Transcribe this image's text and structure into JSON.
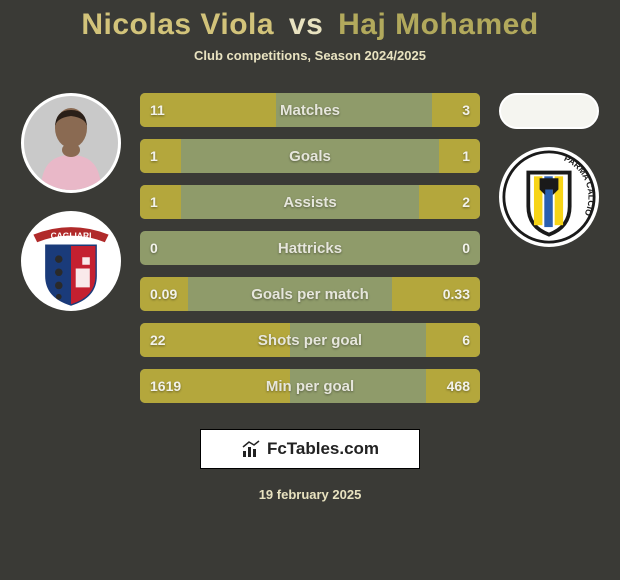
{
  "title": {
    "player1": "Nicolas Viola",
    "vs": "vs",
    "player2": "Haj Mohamed",
    "player1_color": "#d2c37a",
    "vs_color": "#e8e2c0",
    "player2_color": "#b2a95c"
  },
  "subtitle": "Club competitions, Season 2024/2025",
  "subtitle_color": "#e8e2c0",
  "background_color": "#3a3a36",
  "stats": {
    "bar_bg": "#8f9b6a",
    "left_fill": "#b4a73c",
    "right_fill": "#b4a73c",
    "text_color": "#f2f2ea",
    "label_color": "#e6e6dc",
    "rows": [
      {
        "label": "Matches",
        "left": "11",
        "right": "3",
        "left_pct": 40,
        "right_pct": 14
      },
      {
        "label": "Goals",
        "left": "1",
        "right": "1",
        "left_pct": 12,
        "right_pct": 12
      },
      {
        "label": "Assists",
        "left": "1",
        "right": "2",
        "left_pct": 12,
        "right_pct": 18
      },
      {
        "label": "Hattricks",
        "left": "0",
        "right": "0",
        "left_pct": 0,
        "right_pct": 0
      },
      {
        "label": "Goals per match",
        "left": "0.09",
        "right": "0.33",
        "left_pct": 14,
        "right_pct": 26
      },
      {
        "label": "Shots per goal",
        "left": "22",
        "right": "6",
        "left_pct": 44,
        "right_pct": 16
      },
      {
        "label": "Min per goal",
        "left": "1619",
        "right": "468",
        "left_pct": 44,
        "right_pct": 16
      }
    ]
  },
  "left_side": {
    "avatar_bg": "#d8c8c0",
    "club_name": "cagliari-badge",
    "club_bg": "#ffffff",
    "club_banner": "#b02a2a",
    "club_banner_text": "CAGLIARI",
    "shield_colors": [
      "#1a3b7a",
      "#c42030"
    ]
  },
  "right_side": {
    "oval_bg": "#f5f5f0",
    "club_name": "parma-badge",
    "club_bg": "#ffffff",
    "club_ring_text": "PARMA CALCIO",
    "stripe_colors": [
      "#1a1a1a",
      "#f7d417",
      "#2a5fb0"
    ]
  },
  "branding": {
    "text": "FcTables.com",
    "bg": "#ffffff",
    "border": "#000000",
    "text_color": "#222222"
  },
  "date": "19 february 2025",
  "date_color": "#e8e2c0"
}
